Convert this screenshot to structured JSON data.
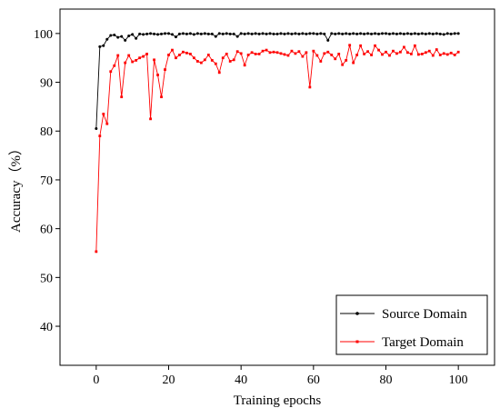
{
  "chart_data": {
    "type": "line",
    "xlabel": "Training epochs",
    "ylabel": "Accuracy（%）",
    "xlim": [
      -10,
      110
    ],
    "ylim": [
      32,
      105
    ],
    "xticks": [
      0,
      20,
      40,
      60,
      80,
      100
    ],
    "yticks": [
      40,
      50,
      60,
      70,
      80,
      90,
      100
    ],
    "legend_position": "bottom-right",
    "grid": false,
    "x": [
      0,
      1,
      2,
      3,
      4,
      5,
      6,
      7,
      8,
      9,
      10,
      11,
      12,
      13,
      14,
      15,
      16,
      17,
      18,
      19,
      20,
      21,
      22,
      23,
      24,
      25,
      26,
      27,
      28,
      29,
      30,
      31,
      32,
      33,
      34,
      35,
      36,
      37,
      38,
      39,
      40,
      41,
      42,
      43,
      44,
      45,
      46,
      47,
      48,
      49,
      50,
      51,
      52,
      53,
      54,
      55,
      56,
      57,
      58,
      59,
      60,
      61,
      62,
      63,
      64,
      65,
      66,
      67,
      68,
      69,
      70,
      71,
      72,
      73,
      74,
      75,
      76,
      77,
      78,
      79,
      80,
      81,
      82,
      83,
      84,
      85,
      86,
      87,
      88,
      89,
      90,
      91,
      92,
      93,
      94,
      95,
      96,
      97,
      98,
      99,
      100
    ],
    "series": [
      {
        "name": "Source Domain",
        "color": "#000000",
        "values": [
          80.5,
          97.3,
          97.5,
          98.8,
          99.6,
          99.7,
          99.2,
          99.4,
          98.6,
          99.5,
          99.8,
          99.0,
          99.9,
          99.8,
          99.9,
          100.0,
          99.9,
          99.8,
          99.9,
          100.0,
          100.0,
          99.8,
          99.3,
          99.9,
          100.0,
          99.9,
          100.0,
          99.8,
          100.0,
          99.9,
          100.0,
          99.9,
          99.9,
          99.4,
          100.0,
          99.9,
          100.0,
          99.9,
          99.9,
          99.4,
          100.0,
          99.9,
          100.0,
          99.9,
          100.0,
          99.9,
          100.0,
          99.9,
          100.0,
          99.9,
          99.9,
          100.0,
          99.9,
          100.0,
          99.9,
          100.0,
          99.9,
          100.0,
          99.9,
          100.0,
          100.0,
          99.9,
          100.0,
          99.9,
          98.6,
          100.0,
          99.9,
          100.0,
          99.9,
          100.0,
          99.9,
          100.0,
          99.9,
          100.0,
          99.9,
          100.0,
          99.9,
          100.0,
          99.9,
          100.0,
          100.0,
          99.9,
          100.0,
          99.9,
          100.0,
          99.9,
          100.0,
          99.9,
          100.0,
          99.9,
          100.0,
          99.9,
          100.0,
          99.9,
          100.0,
          99.9,
          99.8,
          100.0,
          99.9,
          100.0,
          100.0
        ]
      },
      {
        "name": "Target Domain",
        "color": "#ff0000",
        "values": [
          55.3,
          79.0,
          83.5,
          81.5,
          92.2,
          93.4,
          95.5,
          87.0,
          94.0,
          95.5,
          94.2,
          94.5,
          95.0,
          95.3,
          95.8,
          82.5,
          94.6,
          91.5,
          87.0,
          92.6,
          95.6,
          96.6,
          95.0,
          95.6,
          96.2,
          96.0,
          95.8,
          95.0,
          94.3,
          94.0,
          94.6,
          95.6,
          94.5,
          93.8,
          92.0,
          95.0,
          95.8,
          94.3,
          94.6,
          96.3,
          95.9,
          93.5,
          95.6,
          96.1,
          95.8,
          95.8,
          96.4,
          96.6,
          96.1,
          96.2,
          96.1,
          95.9,
          95.7,
          95.5,
          96.4,
          95.9,
          96.3,
          95.3,
          96.1,
          89.0,
          96.4,
          95.5,
          94.3,
          95.9,
          96.2,
          95.6,
          94.8,
          95.8,
          93.6,
          94.5,
          97.6,
          94.0,
          95.6,
          97.5,
          95.8,
          96.3,
          95.6,
          97.5,
          96.6,
          95.7,
          96.2,
          95.5,
          96.4,
          95.9,
          96.2,
          97.2,
          96.1,
          95.8,
          97.5,
          95.7,
          95.8,
          96.1,
          96.4,
          95.5,
          96.7,
          95.6,
          95.9,
          95.7,
          96.0,
          95.6,
          96.2
        ]
      }
    ]
  }
}
